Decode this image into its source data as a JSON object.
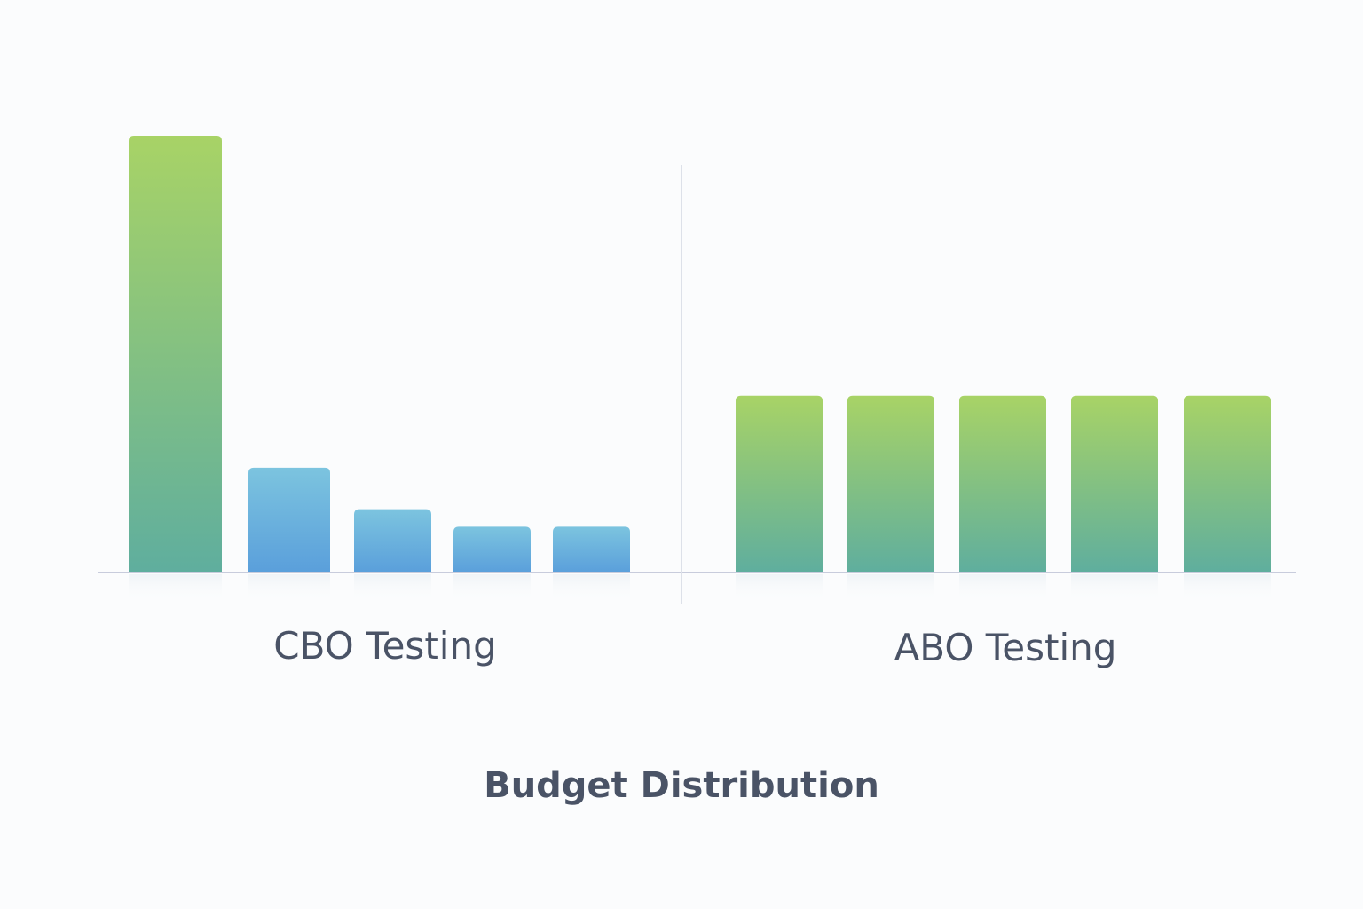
{
  "chart_data": {
    "type": "bar",
    "title": "Budget Distribution",
    "groups": [
      {
        "name": "CBO Testing",
        "values": [
          100,
          24,
          14.5,
          10.5,
          10.5
        ]
      },
      {
        "name": "ABO Testing",
        "values": [
          40.5,
          40.5,
          40.5,
          40.5,
          40.5
        ]
      }
    ],
    "ylim": [
      0,
      100
    ],
    "grid": false,
    "colors": {
      "green_top": "#a8d366",
      "green_bottom": "#5fae9e",
      "blue_top": "#7cc4df",
      "blue_bottom": "#5a9fdb",
      "axis": "#c8ccdc",
      "text": "#4a5366",
      "background": "#fbfcfd"
    }
  }
}
